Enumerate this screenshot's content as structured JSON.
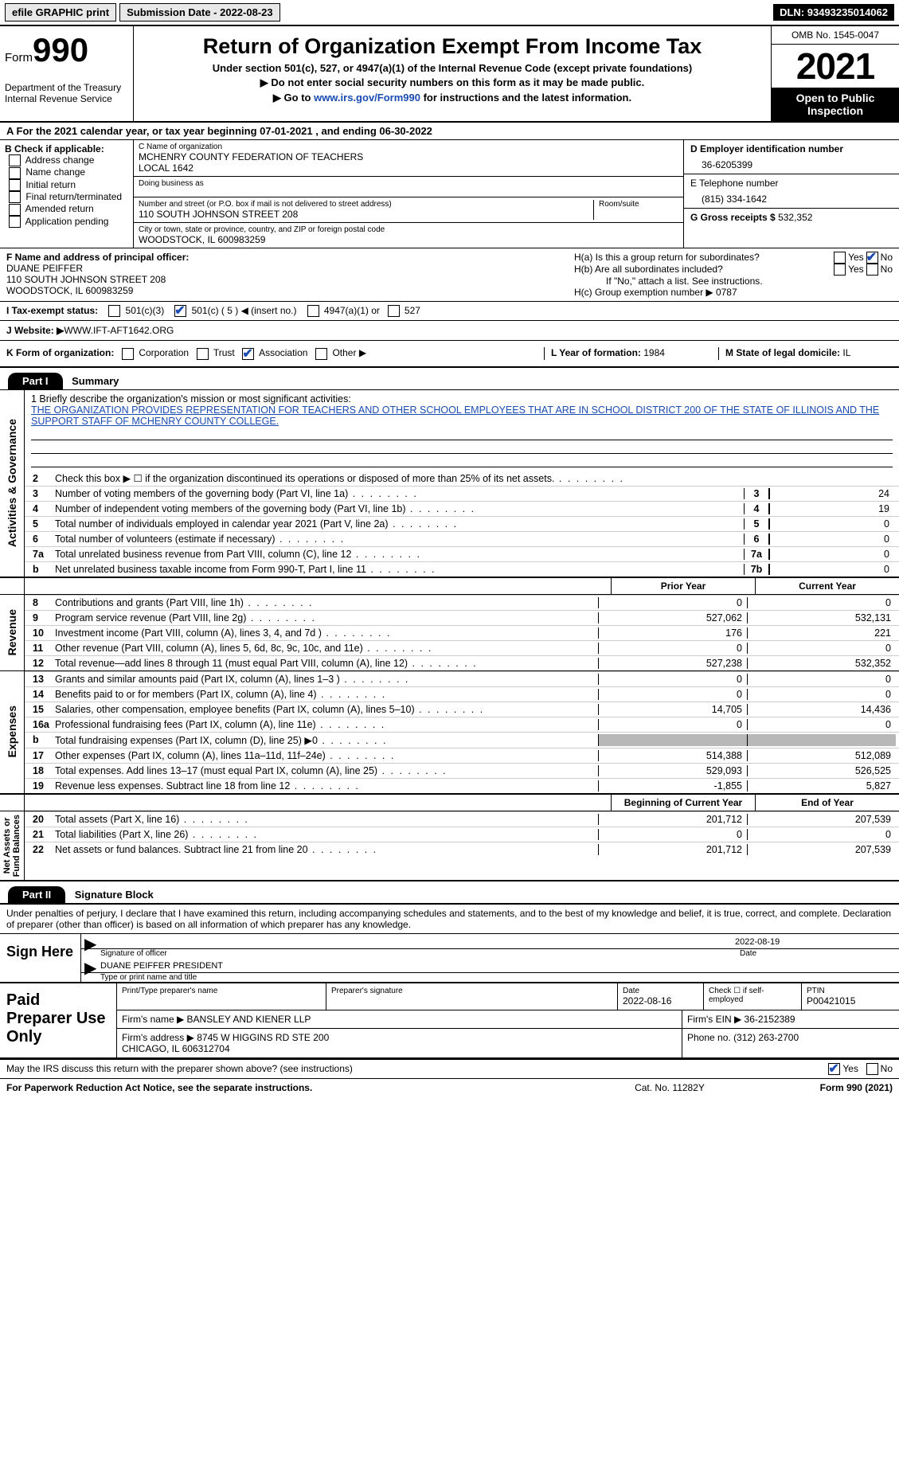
{
  "topbar": {
    "efile": "efile GRAPHIC print",
    "subdate_label": "Submission Date - ",
    "subdate": "2022-08-23",
    "dln_label": "DLN: ",
    "dln": "93493235014062"
  },
  "header": {
    "form_label": "Form",
    "form_no": "990",
    "dept": "Department of the Treasury\nInternal Revenue Service",
    "title": "Return of Organization Exempt From Income Tax",
    "sub": "Under section 501(c), 527, or 4947(a)(1) of the Internal Revenue Code (except private foundations)",
    "arrow1": "▶ Do not enter social security numbers on this form as it may be made public.",
    "arrow2_pre": "▶ Go to ",
    "arrow2_link": "www.irs.gov/Form990",
    "arrow2_post": " for instructions and the latest information.",
    "omb": "OMB No. 1545-0047",
    "year": "2021",
    "inspect": "Open to Public Inspection"
  },
  "rowA": "A   For the 2021 calendar year, or tax year beginning 07-01-2021     , and ending 06-30-2022",
  "colB": {
    "label": "B Check if applicable:",
    "opts": [
      "Address change",
      "Name change",
      "Initial return",
      "Final return/terminated",
      "Amended return",
      "Application pending"
    ]
  },
  "colC": {
    "name_label": "C Name of organization",
    "name": "MCHENRY COUNTY FEDERATION OF TEACHERS\nLOCAL 1642",
    "dba_label": "Doing business as",
    "addr_label": "Number and street (or P.O. box if mail is not delivered to street address)",
    "room_label": "Room/suite",
    "addr": "110 SOUTH JOHNSON STREET 208",
    "city_label": "City or town, state or province, country, and ZIP or foreign postal code",
    "city": "WOODSTOCK, IL   600983259"
  },
  "colDE": {
    "d_label": "D Employer identification number",
    "d_val": "36-6205399",
    "e_label": "E Telephone number",
    "e_val": "(815) 334-1642",
    "g_label": "G Gross receipts $ ",
    "g_val": "532,352"
  },
  "fh": {
    "f_label": "F  Name and address of principal officer:",
    "f_name": "DUANE PEIFFER\n110 SOUTH JOHNSON STREET 208\nWOODSTOCK, IL   600983259",
    "ha": "H(a)  Is this a group return for subordinates?",
    "hb": "H(b)  Are all subordinates included?",
    "hb_note": "If \"No,\" attach a list. See instructions.",
    "hc": "H(c)  Group exemption number ▶    0787",
    "yes": "Yes",
    "no": "No"
  },
  "taxrow": {
    "label": "I   Tax-exempt status:",
    "o1": "501(c)(3)",
    "o2": "501(c) ( 5 ) ◀ (insert no.)",
    "o3": "4947(a)(1) or",
    "o4": "527"
  },
  "jrow": {
    "label": "J   Website: ▶",
    "val": "  WWW.IFT-AFT1642.ORG"
  },
  "krow": {
    "k": "K Form of organization:",
    "o1": "Corporation",
    "o2": "Trust",
    "o3": "Association",
    "o4": "Other ▶",
    "l": "L Year of formation: ",
    "lval": "1984",
    "m": "M State of legal domicile: ",
    "mval": "IL"
  },
  "part1": {
    "bar": "Part I",
    "title": "Summary"
  },
  "mission": {
    "prompt": "1   Briefly describe the organization's mission or most significant activities:",
    "text": "THE ORGANIZATION PROVIDES REPRESENTATION FOR TEACHERS AND OTHER SCHOOL EMPLOYEES THAT ARE IN SCHOOL DISTRICT 200 OF THE STATE OF ILLINOIS AND THE SUPPORT STAFF OF MCHENRY COUNTY COLLEGE."
  },
  "act_lines": [
    {
      "n": "2",
      "d": "Check this box ▶ ☐  if the organization discontinued its operations or disposed of more than 25% of its net assets.",
      "box": "",
      "v": ""
    },
    {
      "n": "3",
      "d": "Number of voting members of the governing body (Part VI, line 1a)",
      "box": "3",
      "v": "24"
    },
    {
      "n": "4",
      "d": "Number of independent voting members of the governing body (Part VI, line 1b)",
      "box": "4",
      "v": "19"
    },
    {
      "n": "5",
      "d": "Total number of individuals employed in calendar year 2021 (Part V, line 2a)",
      "box": "5",
      "v": "0"
    },
    {
      "n": "6",
      "d": "Total number of volunteers (estimate if necessary)",
      "box": "6",
      "v": "0"
    },
    {
      "n": "7a",
      "d": "Total unrelated business revenue from Part VIII, column (C), line 12",
      "box": "7a",
      "v": "0"
    },
    {
      "n": "b",
      "d": "Net unrelated business taxable income from Form 990-T, Part I, line 11",
      "box": "7b",
      "v": "0"
    }
  ],
  "hdr2": {
    "py": "Prior Year",
    "cy": "Current Year"
  },
  "rev_lines": [
    {
      "n": "8",
      "d": "Contributions and grants (Part VIII, line 1h)",
      "v1": "0",
      "v2": "0"
    },
    {
      "n": "9",
      "d": "Program service revenue (Part VIII, line 2g)",
      "v1": "527,062",
      "v2": "532,131"
    },
    {
      "n": "10",
      "d": "Investment income (Part VIII, column (A), lines 3, 4, and 7d )",
      "v1": "176",
      "v2": "221"
    },
    {
      "n": "11",
      "d": "Other revenue (Part VIII, column (A), lines 5, 6d, 8c, 9c, 10c, and 11e)",
      "v1": "0",
      "v2": "0"
    },
    {
      "n": "12",
      "d": "Total revenue—add lines 8 through 11 (must equal Part VIII, column (A), line 12)",
      "v1": "527,238",
      "v2": "532,352"
    }
  ],
  "exp_lines": [
    {
      "n": "13",
      "d": "Grants and similar amounts paid (Part IX, column (A), lines 1–3 )",
      "v1": "0",
      "v2": "0"
    },
    {
      "n": "14",
      "d": "Benefits paid to or for members (Part IX, column (A), line 4)",
      "v1": "0",
      "v2": "0"
    },
    {
      "n": "15",
      "d": "Salaries, other compensation, employee benefits (Part IX, column (A), lines 5–10)",
      "v1": "14,705",
      "v2": "14,436"
    },
    {
      "n": "16a",
      "d": "Professional fundraising fees (Part IX, column (A), line 11e)",
      "v1": "0",
      "v2": "0"
    },
    {
      "n": "b",
      "d": "Total fundraising expenses (Part IX, column (D), line 25) ▶0",
      "v1": "GREY",
      "v2": "GREY"
    },
    {
      "n": "17",
      "d": "Other expenses (Part IX, column (A), lines 11a–11d, 11f–24e)",
      "v1": "514,388",
      "v2": "512,089"
    },
    {
      "n": "18",
      "d": "Total expenses. Add lines 13–17 (must equal Part IX, column (A), line 25)",
      "v1": "529,093",
      "v2": "526,525"
    },
    {
      "n": "19",
      "d": "Revenue less expenses. Subtract line 18 from line 12",
      "v1": "-1,855",
      "v2": "5,827"
    }
  ],
  "hdr3": {
    "by": "Beginning of Current Year",
    "ey": "End of Year"
  },
  "net_lines": [
    {
      "n": "20",
      "d": "Total assets (Part X, line 16)",
      "v1": "201,712",
      "v2": "207,539"
    },
    {
      "n": "21",
      "d": "Total liabilities (Part X, line 26)",
      "v1": "0",
      "v2": "0"
    },
    {
      "n": "22",
      "d": "Net assets or fund balances. Subtract line 21 from line 20",
      "v1": "201,712",
      "v2": "207,539"
    }
  ],
  "vtabs": {
    "ag": "Activities & Governance",
    "rev": "Revenue",
    "exp": "Expenses",
    "net": "Net Assets or\nFund Balances"
  },
  "part2": {
    "bar": "Part II",
    "title": "Signature Block"
  },
  "decl": "Under penalties of perjury, I declare that I have examined this return, including accompanying schedules and statements, and to the best of my knowledge and belief, it is true, correct, and complete. Declaration of preparer (other than officer) is based on all information of which preparer has any knowledge.",
  "sign": {
    "label": "Sign Here",
    "date": "2022-08-19",
    "sig_lbl": "Signature of officer",
    "date_lbl": "Date",
    "name": "DUANE PEIFFER  PRESIDENT",
    "name_lbl": "Type or print name and title"
  },
  "prep": {
    "label": "Paid Preparer Use Only",
    "h1": "Print/Type preparer's name",
    "h2": "Preparer's signature",
    "h3": "Date",
    "h3v": "2022-08-16",
    "h4": "Check ☐ if self-employed",
    "h5": "PTIN",
    "h5v": "P00421015",
    "firm_lbl": "Firm's name      ▶",
    "firm": "BANSLEY AND KIENER LLP",
    "ein_lbl": "Firm's EIN ▶",
    "ein": "36-2152389",
    "addr_lbl": "Firm's address ▶",
    "addr": "8745 W HIGGINS RD STE 200\nCHICAGO, IL   606312704",
    "ph_lbl": "Phone no. ",
    "ph": "(312) 263-2700"
  },
  "discuss": {
    "q": "May the IRS discuss this return with the preparer shown above? (see instructions)",
    "yes": "Yes",
    "no": "No"
  },
  "footer": {
    "l": "For Paperwork Reduction Act Notice, see the separate instructions.",
    "c": "Cat. No. 11282Y",
    "r": "Form 990 (2021)"
  }
}
